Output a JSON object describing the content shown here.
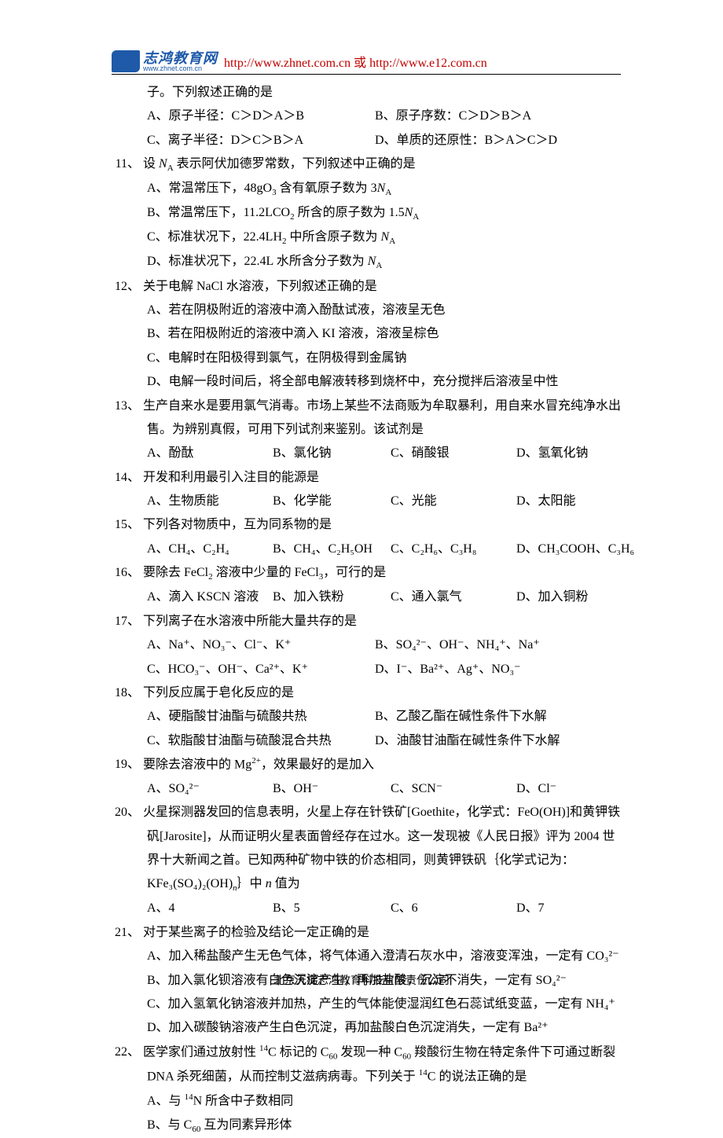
{
  "header": {
    "logo_cn": "志鸿教育网",
    "logo_url": "www.zhnet.com.cn",
    "links": "http://www.zhnet.com.cn 或 http://www.e12.com.cn"
  },
  "content": {
    "l0": "子。下列叙述正确的是",
    "q10": {
      "a": "A、原子半径：C＞D＞A＞B",
      "b": "B、原子序数：C＞D＞B＞A",
      "c": "C、离子半径：D＞C＞B＞A",
      "d": "D、单质的还原性：B＞A＞C＞D"
    },
    "q11": {
      "num": "11、",
      "stem_a": "设 ",
      "stem_b": " 表示阿伏加德罗常数，下列叙述中正确的是",
      "na": "N",
      "a1": "A、常温常压下，48gO",
      "a2": " 含有氧原子数为 3",
      "b1": "B、常温常压下，11.2LCO",
      "b2": " 所含的原子数为 1.5",
      "c1": "C、标准状况下，22.4LH",
      "c2": " 中所含原子数为 ",
      "d1": "D、标准状况下，22.4L 水所含分子数为 "
    },
    "q12": {
      "num": "12、",
      "stem": "关于电解 NaCl 水溶液，下列叙述正确的是",
      "a": "A、若在阴极附近的溶液中滴入酚酞试液，溶液呈无色",
      "b": "B、若在阳极附近的溶液中滴入 KI 溶液，溶液呈棕色",
      "c": "C、电解时在阳极得到氯气，在阴极得到金属钠",
      "d": "D、电解一段时间后，将全部电解液转移到烧杯中，充分搅拌后溶液呈中性"
    },
    "q13": {
      "num": "13、",
      "stem1": "生产自来水是要用氯气消毒。市场上某些不法商贩为牟取暴利，用自来水冒充纯净水出",
      "stem2": "售。为辨别真假，可用下列试剂来鉴别。该试剂是",
      "a": "A、酚酞",
      "b": "B、氯化钠",
      "c": "C、硝酸银",
      "d": "D、氢氧化钠"
    },
    "q14": {
      "num": "14、",
      "stem": "开发和利用最引入注目的能源是",
      "a": "A、生物质能",
      "b": "B、化学能",
      "c": "C、光能",
      "d": "D、太阳能"
    },
    "q15": {
      "num": "15、",
      "stem": "下列各对物质中，互为同系物的是",
      "a": "A、CH₄、C₂H₄",
      "b": "B、CH₄、C₂H₅OH",
      "c": "C、C₂H₆、C₃H₈",
      "d": "D、CH₃COOH、C₃H₆"
    },
    "q16": {
      "num": "16、",
      "stem_a": "要除去 FeCl",
      "stem_b": " 溶液中少量的 FeCl",
      "stem_c": "，可行的是",
      "a": "A、滴入 KSCN 溶液",
      "b": "B、加入铁粉",
      "c": "C、通入氯气",
      "d": "D、加入铜粉"
    },
    "q17": {
      "num": "17、",
      "stem": "下列离子在水溶液中所能大量共存的是",
      "a": "A、Na⁺、NO₃⁻、Cl⁻、K⁺",
      "b": "B、SO₄²⁻、OH⁻、NH₄⁺、Na⁺",
      "c": "C、HCO₃⁻、OH⁻、Ca²⁺、K⁺",
      "d": "D、I⁻、Ba²⁺、Ag⁺、NO₃⁻"
    },
    "q18": {
      "num": "18、",
      "stem": "下列反应属于皂化反应的是",
      "a": "A、硬脂酸甘油酯与硫酸共热",
      "b": "B、乙酸乙酯在碱性条件下水解",
      "c": "C、软脂酸甘油酯与硫酸混合共热",
      "d": "D、油酸甘油酯在碱性条件下水解"
    },
    "q19": {
      "num": "19、",
      "stem_a": "要除去溶液中的 Mg",
      "stem_b": "，效果最好的是加入",
      "a": "A、SO₄²⁻",
      "b": "B、OH⁻",
      "c": "C、SCN⁻",
      "d": "D、Cl⁻"
    },
    "q20": {
      "num": "20、",
      "s1": "火星探测器发回的信息表明，火星上存在针铁矿[Goethite，化学式：FeO(OH)]和黄钾铁",
      "s2": "矾[Jarosite]，从而证明火星表面曾经存在过水。这一发现被《人民日报》评为 2004 世",
      "s3": "界十大新闻之首。已知两种矿物中铁的价态相同，则黄钾铁矾｛化学式记为：",
      "s4a": "KFe₃(SO₄)₂(OH)",
      "s4b": "｝中 ",
      "s4c": " 值为",
      "n": "n",
      "a": "A、4",
      "b": "B、5",
      "c": "C、6",
      "d": "D、7"
    },
    "q21": {
      "num": "21、",
      "stem": "对于某些离子的检验及结论一定正确的是",
      "a": "A、加入稀盐酸产生无色气体，将气体通入澄清石灰水中，溶液变浑浊，一定有 CO₃²⁻",
      "b": "B、加入氯化钡溶液有白色沉淀产生，再加盐酸，沉淀不消失，一定有 SO₄²⁻",
      "c": "C、加入氢氧化钠溶液并加热，产生的气体能使湿润红色石蕊试纸变蓝，一定有 NH₄⁺",
      "d": "D、加入碳酸钠溶液产生白色沉淀，再加盐酸白色沉淀消失，一定有 Ba²⁺"
    },
    "q22": {
      "num": "22、",
      "s1a": "医学家们通过放射性 ",
      "s1b": "C 标记的 C",
      "s1c": " 发现一种 C",
      "s1d": " 羧酸衍生物在特定条件下可通过断裂",
      "s2a": "DNA 杀死细菌，从而控制艾滋病病毒。下列关于 ",
      "s2b": "C 的说法正确的是",
      "a1": "A、与 ",
      "a2": "N 所含中子数相同",
      "b1": "B、与 C",
      "b2": " 互为同素异形体"
    }
  },
  "footer": "北京天梯志鸿教育科技有限责任公司"
}
